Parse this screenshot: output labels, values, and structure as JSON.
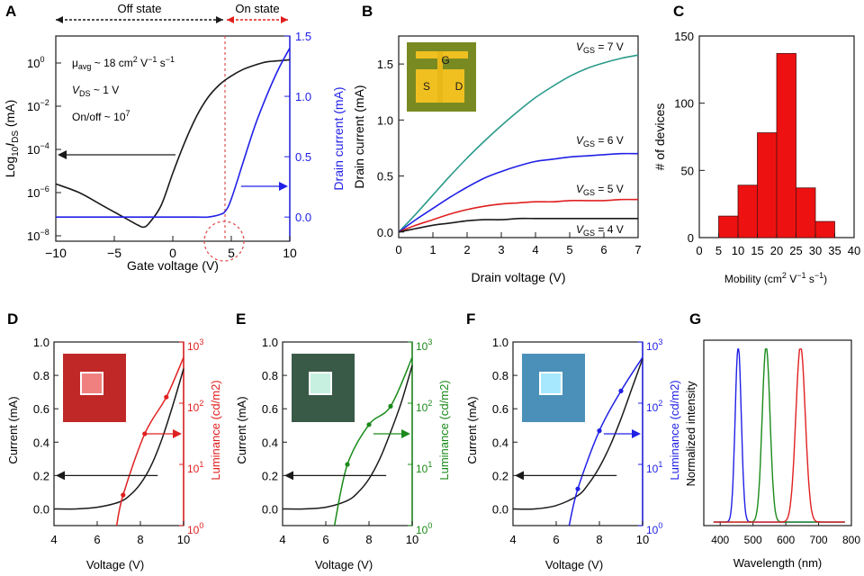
{
  "colors": {
    "black": "#1a1a1a",
    "blue": "#2020e6",
    "red": "#e02020",
    "green": "#1a8a1a",
    "teal": "#2a9a8a",
    "bar_fill": "#ee1111",
    "guide_red": "#e05050"
  },
  "panels": {
    "A": {
      "letter": "A",
      "off_state": "Off state",
      "on_state": "On state",
      "ylabel_left": "Log10IDS (mA)",
      "ylabel_left_base": "Log",
      "ylabel_left_sub1": "10",
      "ylabel_left_I": "I",
      "ylabel_left_sub2": "DS",
      "ylabel_left_unit": " (mA)",
      "ylabel_right": "Drain current (mA)",
      "xlabel": "Gate voltage (V)",
      "ann_mu": "μavg ~ 18 cm2 V−1 s−1",
      "ann_vds": "VDS ~ 1 V",
      "ann_onoff": "On/off ~ 107",
      "mu_a": "μ",
      "mu_b": "avg",
      "mu_c": " ~ 18 cm",
      "mu_d": "2",
      "mu_e": " V",
      "mu_f": "−1",
      "mu_g": " s",
      "mu_h": "−1",
      "vds_a": "V",
      "vds_b": "DS",
      "vds_c": " ~ 1 V",
      "onoff_a": "On/off ~ 10",
      "onoff_b": "7",
      "xticks": [
        "−10",
        "−5",
        "0",
        "5",
        "10"
      ],
      "yticks_left_base": "10",
      "yticks_left_exp": [
        "0",
        "−2",
        "−4",
        "−6",
        "−8"
      ],
      "yticks_right": [
        "0.0",
        "0.5",
        "1.0",
        "1.5"
      ]
    },
    "B": {
      "letter": "B",
      "xlabel": "Drain voltage (V)",
      "ylabel": "Drain current (mA)",
      "xticks": [
        "0",
        "1",
        "2",
        "3",
        "4",
        "5",
        "6",
        "7"
      ],
      "yticks": [
        "0.0",
        "0.5",
        "1.0",
        "1.5"
      ],
      "inset_g": "G",
      "inset_s": "S",
      "inset_d": "D",
      "curve_labels": [
        {
          "pre": "V",
          "sub": "GS",
          "post": " = 7 V"
        },
        {
          "pre": "V",
          "sub": "GS",
          "post": " = 6 V"
        },
        {
          "pre": "V",
          "sub": "GS",
          "post": " = 5 V"
        },
        {
          "pre": "V",
          "sub": "GS",
          "post": " = 4 V"
        }
      ]
    },
    "C": {
      "letter": "C",
      "ylabel": "# of devices",
      "xlabel_a": "Mobility (cm",
      "xlabel_b": "2",
      "xlabel_c": " V",
      "xlabel_d": "−1",
      "xlabel_e": " s",
      "xlabel_f": "−1",
      "xlabel_g": ")",
      "xticks": [
        "0",
        "5",
        "10",
        "15",
        "20",
        "25",
        "30",
        "35",
        "40"
      ],
      "yticks": [
        "0",
        "50",
        "100",
        "150"
      ]
    },
    "D": {
      "letter": "D",
      "ylabel": "Current (mA)",
      "ylabel_right": "Luminance (cd/m2)",
      "xlabel": "Voltage (V)"
    },
    "E": {
      "letter": "E",
      "ylabel": "Current (mA)",
      "ylabel_right": "Luminance (cd/m2)",
      "xlabel": "Voltage (V)"
    },
    "F": {
      "letter": "F",
      "ylabel": "Current (mA)",
      "ylabel_right": "Luminance (cd/m2)",
      "xlabel": "Voltage (V)"
    },
    "G": {
      "letter": "G",
      "ylabel": "Normalized intensity",
      "xlabel": "Wavelength (nm)",
      "xticks": [
        "400",
        "500",
        "600",
        "700",
        "800"
      ]
    },
    "led_common": {
      "xticks": [
        "4",
        "6",
        "8",
        "10"
      ],
      "yticks": [
        "0.0",
        "0.2",
        "0.4",
        "0.6",
        "0.8",
        "1.0"
      ],
      "yticks_right_base": "10",
      "yticks_right_exp": [
        "0",
        "1",
        "2",
        "3"
      ]
    }
  },
  "chart_data": [
    {
      "panel": "A",
      "type": "line",
      "xlabel": "Gate voltage (V)",
      "xlim": [
        -10,
        10
      ],
      "ylim_left_log10": [
        -8,
        1
      ],
      "ylim_right": [
        -0.2,
        1.5
      ],
      "series": [
        {
          "axis": "left_log10",
          "x": [
            -10,
            -8,
            -6,
            -4,
            -3,
            -2.5,
            -2,
            -1,
            0,
            1,
            2,
            3,
            4,
            5,
            6,
            7,
            8,
            9,
            10
          ],
          "y": [
            -5.6,
            -6.0,
            -6.6,
            -7.2,
            -7.5,
            -7.6,
            -7.4,
            -6.6,
            -5.1,
            -3.7,
            -2.5,
            -1.6,
            -1.0,
            -0.6,
            -0.3,
            -0.1,
            0.05,
            0.1,
            0.15
          ]
        },
        {
          "axis": "right",
          "x": [
            -10,
            -5,
            0,
            2,
            3,
            4,
            4.5,
            5,
            6,
            7,
            8,
            9,
            10
          ],
          "y": [
            0.0,
            0.0,
            0.0,
            0.0,
            0.0,
            0.02,
            0.05,
            0.15,
            0.45,
            0.75,
            1.0,
            1.22,
            1.4
          ]
        }
      ]
    },
    {
      "panel": "B",
      "type": "line",
      "xlabel": "Drain voltage (V)",
      "ylabel": "Drain current (mA)",
      "xlim": [
        0,
        7
      ],
      "ylim": [
        -0.05,
        1.75
      ],
      "x": [
        0,
        0.5,
        1,
        1.5,
        2,
        2.5,
        3,
        3.5,
        4,
        4.5,
        5,
        5.5,
        6,
        6.5,
        7
      ],
      "series": [
        {
          "name": "VGS = 7 V",
          "values": [
            0.0,
            0.16,
            0.33,
            0.5,
            0.66,
            0.81,
            0.95,
            1.08,
            1.2,
            1.3,
            1.39,
            1.46,
            1.51,
            1.55,
            1.58
          ]
        },
        {
          "name": "VGS = 6 V",
          "values": [
            0.0,
            0.11,
            0.21,
            0.31,
            0.4,
            0.48,
            0.54,
            0.59,
            0.63,
            0.65,
            0.67,
            0.68,
            0.69,
            0.7,
            0.7
          ]
        },
        {
          "name": "VGS = 5 V",
          "values": [
            0.0,
            0.06,
            0.11,
            0.16,
            0.2,
            0.23,
            0.25,
            0.26,
            0.27,
            0.27,
            0.28,
            0.28,
            0.28,
            0.29,
            0.29
          ]
        },
        {
          "name": "VGS = 4 V",
          "values": [
            0.0,
            0.03,
            0.06,
            0.08,
            0.1,
            0.11,
            0.11,
            0.12,
            0.12,
            0.12,
            0.12,
            0.12,
            0.12,
            0.12,
            0.12
          ]
        }
      ]
    },
    {
      "panel": "C",
      "type": "bar",
      "xlabel": "Mobility (cm2 V−1 s−1)",
      "ylabel": "# of devices",
      "xlim": [
        0,
        40
      ],
      "ylim": [
        0,
        150
      ],
      "bins": [
        [
          5,
          10
        ],
        [
          10,
          15
        ],
        [
          15,
          20
        ],
        [
          20,
          25
        ],
        [
          25,
          30
        ],
        [
          30,
          35
        ]
      ],
      "values": [
        16,
        39,
        78,
        137,
        37,
        12
      ]
    },
    {
      "panel": "D",
      "type": "line",
      "xlim": [
        4,
        10
      ],
      "ylim_left": [
        -0.1,
        1.0
      ],
      "ylim_right_log10": [
        0,
        3
      ],
      "current": {
        "x": [
          4,
          5,
          6,
          7,
          7.5,
          8,
          8.5,
          9,
          9.5,
          10
        ],
        "y": [
          0.0,
          0.0,
          0.01,
          0.04,
          0.08,
          0.15,
          0.26,
          0.42,
          0.62,
          0.84
        ]
      },
      "luminance_log10": {
        "x": [
          6.9,
          7.2,
          8.2,
          9.2,
          10.0
        ],
        "y": [
          0.0,
          0.5,
          1.5,
          2.1,
          2.75
        ]
      },
      "markers_x": [
        7.2,
        8.2,
        9.2
      ]
    },
    {
      "panel": "E",
      "type": "line",
      "xlim": [
        4,
        10
      ],
      "ylim_left": [
        -0.1,
        1.0
      ],
      "ylim_right_log10": [
        0,
        3
      ],
      "current": {
        "x": [
          4,
          5,
          6,
          7,
          7.5,
          8,
          8.5,
          9,
          9.5,
          10
        ],
        "y": [
          0.0,
          0.0,
          0.01,
          0.05,
          0.1,
          0.18,
          0.3,
          0.46,
          0.64,
          0.86
        ]
      },
      "luminance_log10": {
        "x": [
          6.4,
          7.0,
          8.0,
          9.0,
          10.0
        ],
        "y": [
          0.0,
          1.0,
          1.65,
          1.95,
          2.75
        ]
      },
      "markers_x": [
        7.0,
        8.0,
        9.0
      ]
    },
    {
      "panel": "F",
      "type": "line",
      "xlim": [
        4,
        10
      ],
      "ylim_left": [
        -0.1,
        1.0
      ],
      "ylim_right_log10": [
        0,
        3
      ],
      "current": {
        "x": [
          4,
          5,
          6,
          7,
          7.5,
          8,
          8.5,
          9,
          9.5,
          10
        ],
        "y": [
          0.0,
          0.0,
          0.02,
          0.08,
          0.15,
          0.25,
          0.38,
          0.54,
          0.72,
          0.9
        ]
      },
      "luminance_log10": {
        "x": [
          6.6,
          7.0,
          8.0,
          9.0,
          10.0
        ],
        "y": [
          0.0,
          0.6,
          1.55,
          2.2,
          2.75
        ]
      },
      "markers_x": [
        7.0,
        8.0,
        9.0
      ]
    },
    {
      "panel": "G",
      "type": "line",
      "xlabel": "Wavelength (nm)",
      "ylabel": "Normalized intensity",
      "xlim": [
        350,
        800
      ],
      "ylim": [
        0,
        1.05
      ],
      "series": [
        {
          "color": "blue",
          "peak": 455,
          "fwhm": 22
        },
        {
          "color": "green",
          "peak": 540,
          "fwhm": 28
        },
        {
          "color": "red",
          "peak": 645,
          "fwhm": 34
        }
      ]
    }
  ]
}
